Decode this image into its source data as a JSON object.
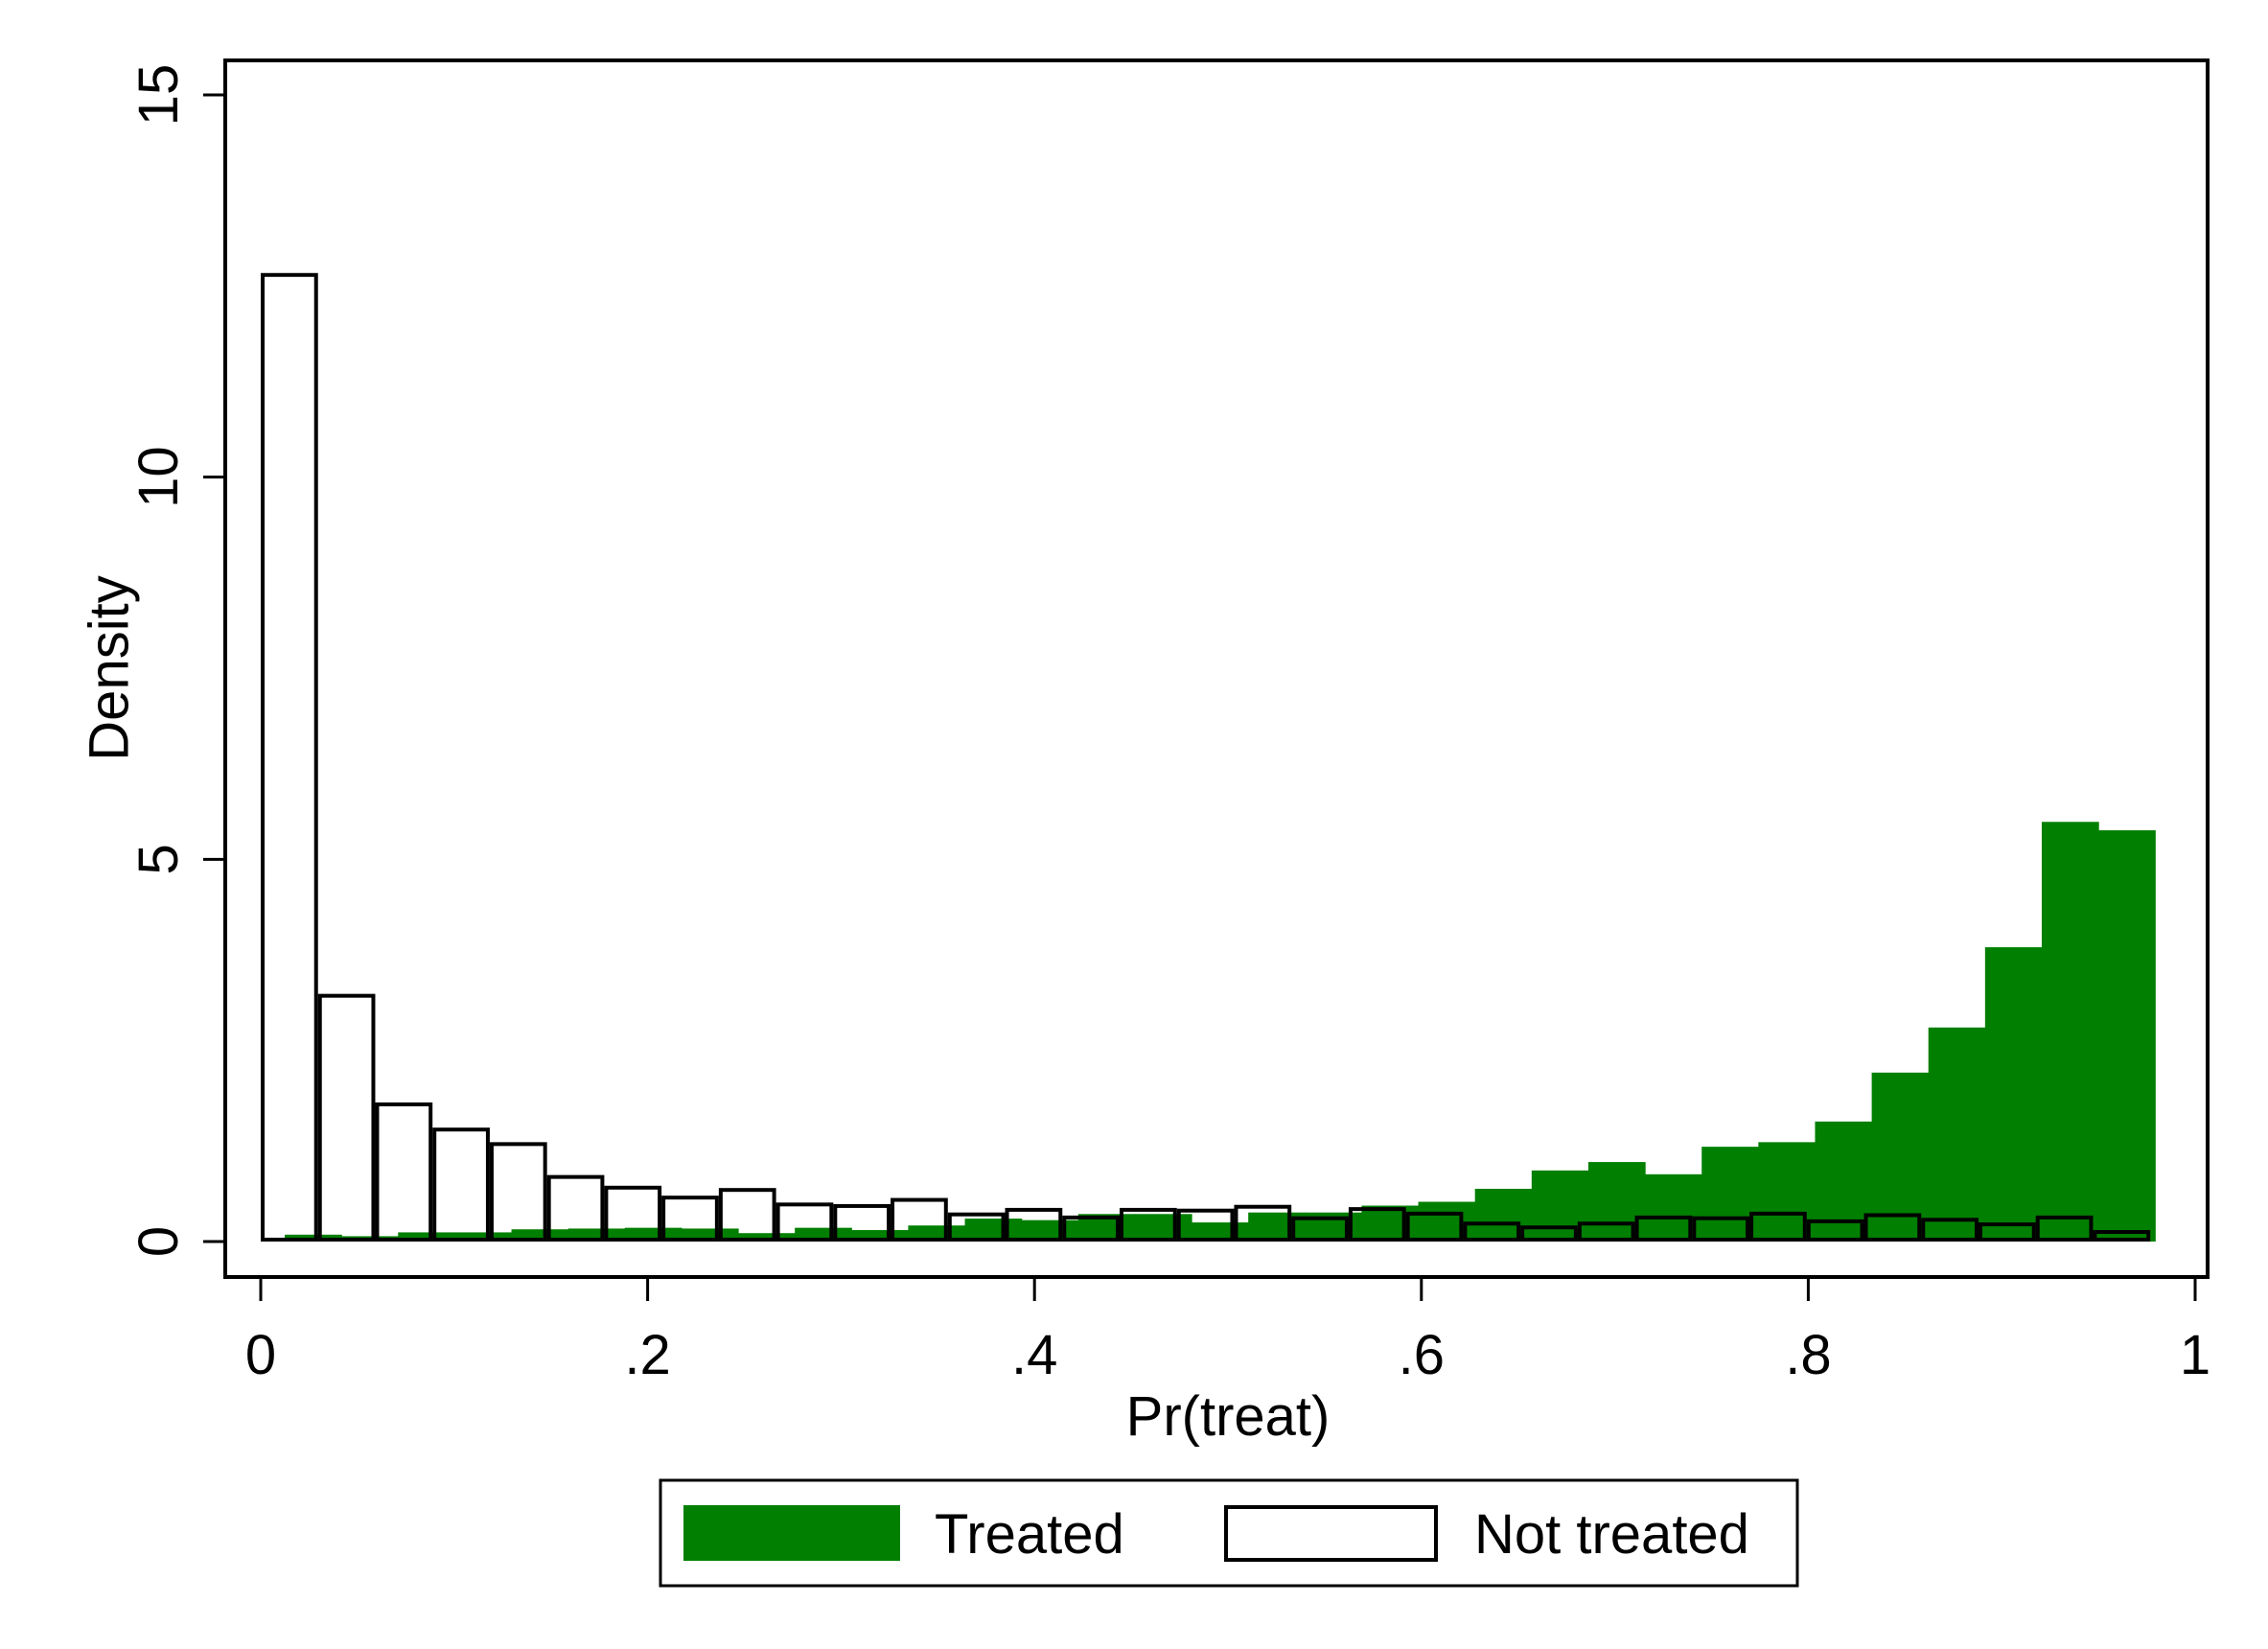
{
  "chart_data": {
    "type": "bar",
    "subtype": "overlaid-histogram",
    "title": "",
    "xlabel": "Pr(treat)",
    "ylabel": "Density",
    "xlim": [
      0,
      1
    ],
    "ylim": [
      0,
      15
    ],
    "x_ticks": [
      {
        "value": 0,
        "label": "0"
      },
      {
        "value": 0.2,
        "label": ".2"
      },
      {
        "value": 0.4,
        "label": ".4"
      },
      {
        "value": 0.6,
        "label": ".6"
      },
      {
        "value": 0.8,
        "label": ".8"
      },
      {
        "value": 1,
        "label": "1"
      }
    ],
    "y_ticks": [
      {
        "value": 0,
        "label": "0"
      },
      {
        "value": 5,
        "label": "5"
      },
      {
        "value": 10,
        "label": "10"
      },
      {
        "value": 15,
        "label": "15"
      }
    ],
    "grid": false,
    "legend_position": "bottom",
    "series": [
      {
        "name": "Treated",
        "style": "filled",
        "color": "#007f00",
        "bin_start": 0.0124,
        "bin_width": 0.0293,
        "values": [
          0.09,
          0.07,
          0.12,
          0.12,
          0.16,
          0.17,
          0.18,
          0.17,
          0.11,
          0.18,
          0.15,
          0.21,
          0.3,
          0.28,
          0.36,
          0.36,
          0.25,
          0.38,
          0.38,
          0.47,
          0.52,
          0.69,
          0.93,
          1.04,
          0.88,
          1.24,
          1.3,
          1.57,
          2.21,
          2.8,
          3.85,
          5.49,
          5.38
        ]
      },
      {
        "name": "Not treated",
        "style": "outline",
        "color": "#000000",
        "bin_start": 0.0,
        "bin_width": 0.0296,
        "values": [
          12.67,
          3.24,
          1.82,
          1.49,
          1.3,
          0.87,
          0.73,
          0.6,
          0.7,
          0.51,
          0.49,
          0.57,
          0.38,
          0.44,
          0.34,
          0.44,
          0.43,
          0.48,
          0.33,
          0.45,
          0.39,
          0.26,
          0.21,
          0.26,
          0.34,
          0.33,
          0.39,
          0.29,
          0.37,
          0.31,
          0.25,
          0.34,
          0.15
        ]
      }
    ]
  },
  "legend": {
    "items": [
      {
        "label": "Treated",
        "swatch": "filled",
        "color": "#007f00"
      },
      {
        "label": "Not treated",
        "swatch": "outline",
        "color": "#000000"
      }
    ]
  }
}
